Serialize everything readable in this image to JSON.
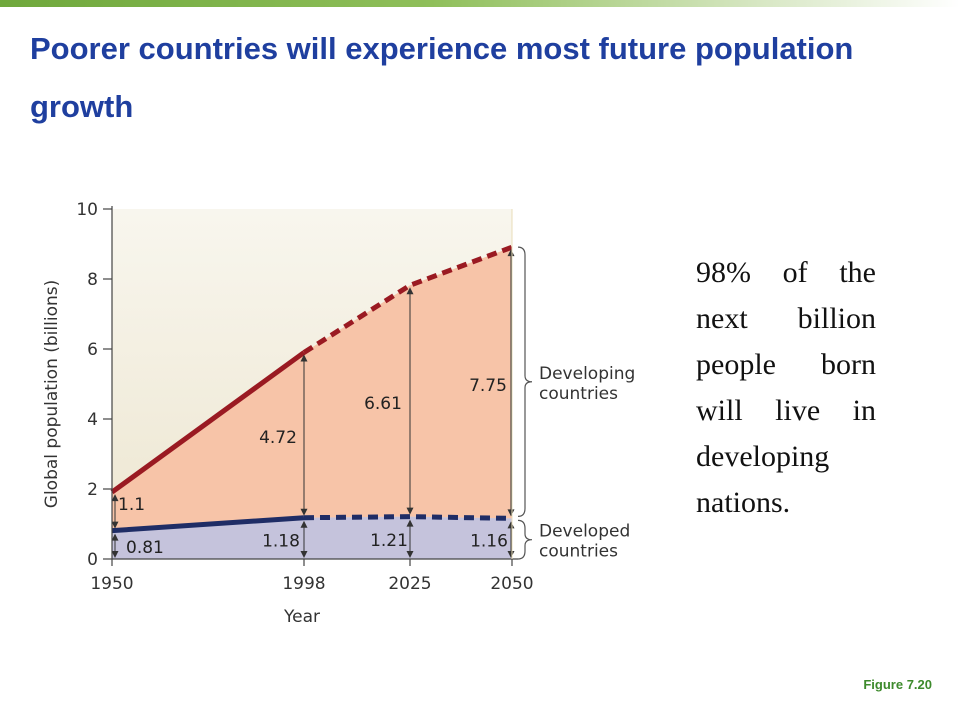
{
  "slide": {
    "title": "Poorer countries will experience most future population growth",
    "side_text": "98% of the next billion people born will live in developing nations.",
    "figure_label": "Figure 7.20"
  },
  "colors": {
    "title": "#1f3f9f",
    "top_bar": "#6fa83c",
    "developing_fill": "#f7c4a8",
    "developed_fill": "#c5c3dc",
    "background_fill": "#ede6d0",
    "developing_line": "#9a1a22",
    "developed_line": "#1f2d66",
    "figure_label": "#3d8a2c"
  },
  "chart_data": {
    "type": "area",
    "xlabel": "Year",
    "ylabel": "Global population (billions)",
    "x": [
      1950,
      1998,
      2025,
      2050
    ],
    "x_tick_labels": [
      "1950",
      "1998",
      "2025",
      "2050"
    ],
    "y_ticks": [
      0,
      2,
      4,
      6,
      8,
      10
    ],
    "y_tick_labels": [
      "0",
      "2",
      "4",
      "6",
      "8",
      "10"
    ],
    "ylim": [
      0,
      10
    ],
    "projected_from": 1998,
    "series": [
      {
        "name": "Developed countries",
        "values": [
          0.81,
          1.18,
          1.21,
          1.16
        ],
        "value_labels": [
          "0.81",
          "1.18",
          "1.21",
          "1.16"
        ]
      },
      {
        "name": "Developing countries",
        "values": [
          1.1,
          4.72,
          6.61,
          7.75
        ],
        "value_labels": [
          "1.1",
          "4.72",
          "6.61",
          "7.75"
        ]
      }
    ],
    "brace_labels": {
      "developing": [
        "Developing",
        "countries"
      ],
      "developed": [
        "Developed",
        "countries"
      ]
    }
  }
}
